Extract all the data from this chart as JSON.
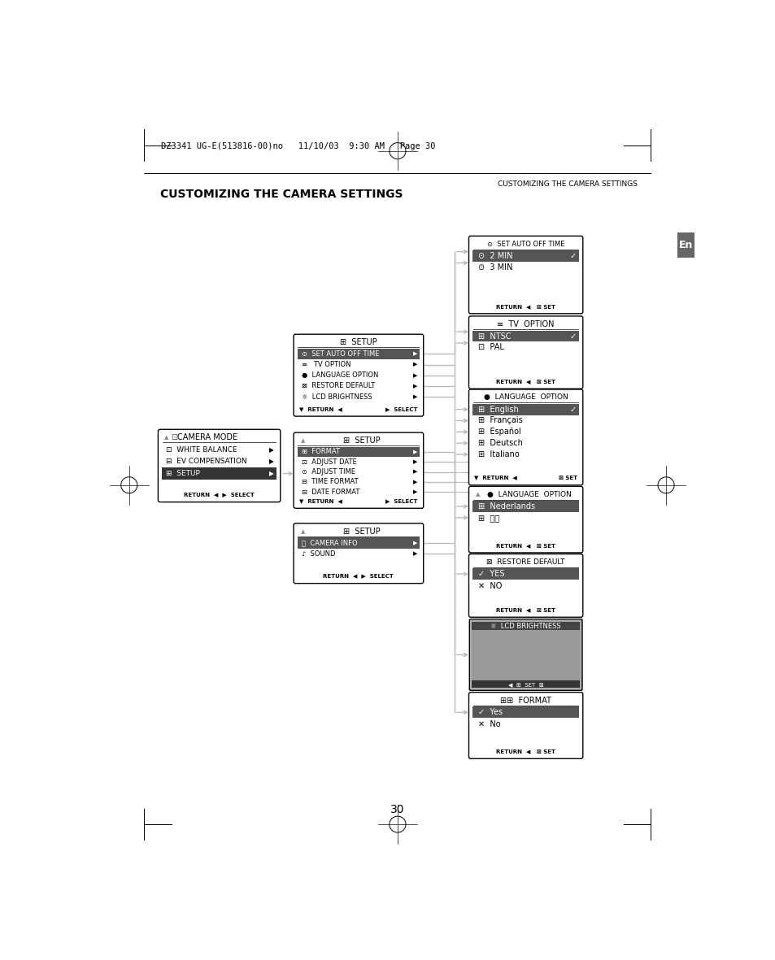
{
  "page_header": "DZ3341 UG-E(513816-00)no   11/10/03  9:30 AM   Page 30",
  "section_header_right": "CUSTOMIZING THE CAMERA SETTINGS",
  "section_title": "CUSTOMIZING THE CAMERA SETTINGS",
  "page_number": "30",
  "bg_color": "#ffffff",
  "arrow_color": "#bbbbbb",
  "hl_color": "#555555",
  "en_label": "En"
}
